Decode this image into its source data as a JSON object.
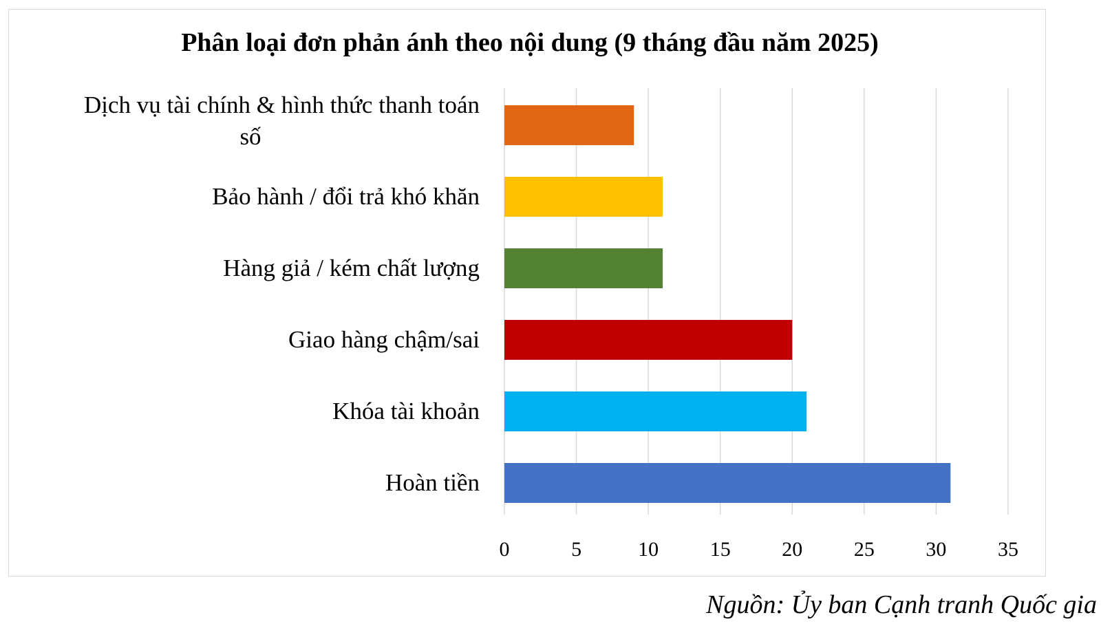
{
  "chart_data": {
    "type": "bar",
    "orientation": "horizontal",
    "title": "Phân loại đơn phản ánh theo nội dung (9 tháng đầu năm 2025)",
    "categories": [
      "Dịch vụ tài chính & hình thức thanh toán số",
      "Bảo hành / đổi trả khó khăn",
      "Hàng giả / kém chất lượng",
      "Giao hàng chậm/sai",
      "Khóa tài khoản",
      "Hoàn tiền"
    ],
    "category_lines": [
      [
        "Dịch vụ tài chính & hình thức thanh toán",
        "số"
      ],
      [
        "Bảo hành / đổi trả khó khăn"
      ],
      [
        "Hàng giả / kém chất lượng"
      ],
      [
        "Giao hàng chậm/sai"
      ],
      [
        "Khóa tài khoản"
      ],
      [
        "Hoàn tiền"
      ]
    ],
    "values": [
      9,
      11,
      11,
      20,
      21,
      31
    ],
    "colors": [
      "#e06616",
      "#ffc000",
      "#548235",
      "#c00000",
      "#00b0f0",
      "#4472c4"
    ],
    "xlim": [
      0,
      35
    ],
    "xticks": [
      0,
      5,
      10,
      15,
      20,
      25,
      30,
      35
    ],
    "grid": true,
    "legend": "none",
    "xlabel": "",
    "ylabel": ""
  },
  "source": "Nguồn: Ủy ban Cạnh tranh Quốc gia"
}
